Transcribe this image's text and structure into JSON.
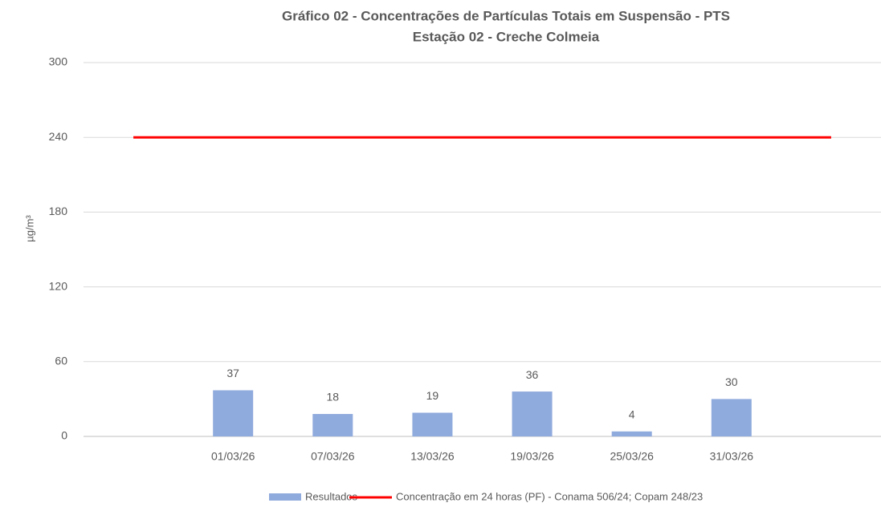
{
  "chart_data": {
    "type": "bar",
    "title": "Gráfico 02  - Concentrações de Partículas Totais em Suspensão - PTS",
    "subtitle": "Estação 02 - Creche Colmeia",
    "y_label": "µg/m³",
    "categories": [
      null,
      "01/03/26",
      "07/03/26",
      "13/03/26",
      "19/03/26",
      "25/03/26",
      "31/03/26",
      null
    ],
    "series": [
      {
        "name": "Resultados",
        "type": "bar",
        "color": "#8faadc",
        "values": [
          null,
          37,
          18,
          19,
          36,
          4,
          30,
          null
        ]
      },
      {
        "name": "Concentração em 24 horas (PF) - Conama 506/24; Copam 248/23",
        "type": "line",
        "color": "#ff0000",
        "values": [
          240,
          240,
          240,
          240,
          240,
          240,
          240,
          240
        ]
      }
    ],
    "ylim": [
      0,
      300
    ],
    "yticks": [
      0,
      60,
      120,
      180,
      240,
      300
    ],
    "grid": true,
    "legend": "bottom"
  }
}
